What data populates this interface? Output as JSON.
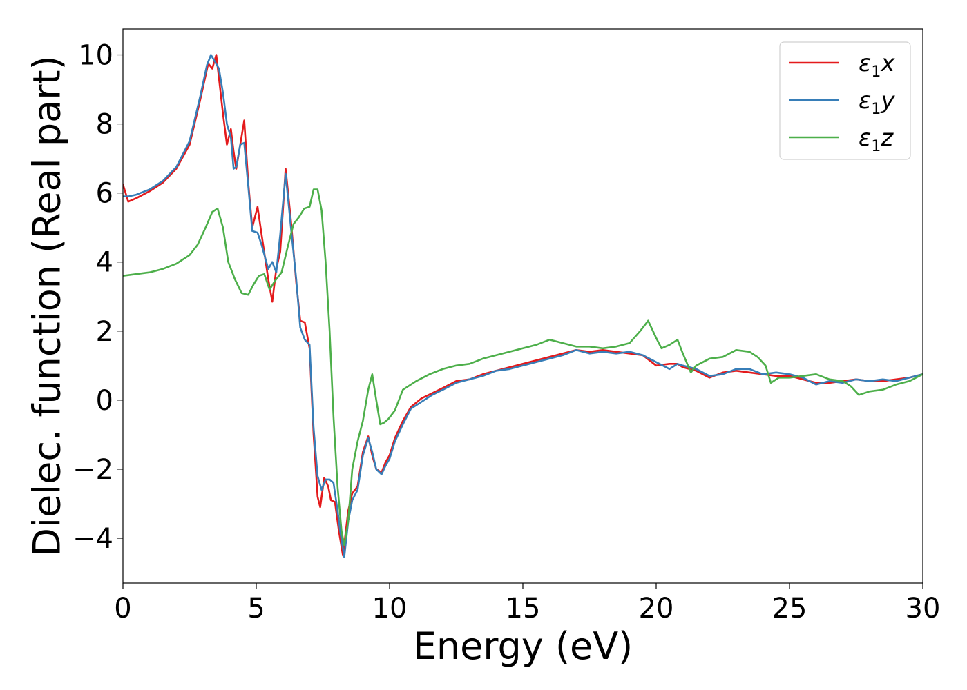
{
  "chart_data": {
    "type": "line",
    "xlabel": "Energy (eV)",
    "ylabel": "Dielec. function (Real part)",
    "xlim": [
      0,
      30
    ],
    "ylim": [
      -5.3,
      10.75
    ],
    "xticks": [
      0,
      5,
      10,
      15,
      20,
      25,
      30
    ],
    "xtick_labels": [
      "0",
      "5",
      "10",
      "15",
      "20",
      "25",
      "30"
    ],
    "yticks": [
      -4,
      -2,
      0,
      2,
      4,
      6,
      8,
      10
    ],
    "ytick_labels": [
      "−4",
      "−2",
      "0",
      "2",
      "4",
      "6",
      "8",
      "10"
    ],
    "grid": false,
    "legend_position": "top-right",
    "series": [
      {
        "name": "ε1x",
        "legend_main": "ε",
        "legend_sub": "1",
        "legend_tail": "x",
        "color": "#e41a1c",
        "x": [
          0,
          0.2,
          0.5,
          1,
          1.5,
          2,
          2.5,
          2.9,
          3.2,
          3.35,
          3.5,
          3.62,
          3.75,
          3.9,
          4.05,
          4.15,
          4.25,
          4.4,
          4.55,
          4.7,
          4.85,
          5.05,
          5.2,
          5.45,
          5.6,
          5.75,
          5.9,
          6.1,
          6.3,
          6.5,
          6.65,
          6.82,
          7.0,
          7.15,
          7.3,
          7.4,
          7.55,
          7.7,
          7.8,
          7.95,
          8.1,
          8.25,
          8.45,
          8.6,
          8.8,
          9.0,
          9.2,
          9.35,
          9.5,
          9.7,
          9.85,
          10.0,
          10.2,
          10.5,
          10.8,
          11.2,
          11.6,
          12.0,
          12.5,
          13.0,
          13.5,
          14.0,
          14.5,
          15.0,
          15.5,
          16.0,
          16.5,
          17.0,
          17.5,
          18.0,
          18.5,
          19.0,
          19.5,
          20.0,
          20.5,
          20.8,
          21.0,
          21.5,
          22.0,
          22.5,
          23.0,
          23.5,
          24.0,
          24.5,
          25.0,
          25.5,
          26.0,
          26.5,
          27.0,
          27.5,
          28.0,
          28.5,
          29.0,
          29.5,
          30.0
        ],
        "y": [
          6.25,
          5.75,
          5.85,
          6.05,
          6.3,
          6.7,
          7.4,
          8.7,
          9.75,
          9.6,
          10.0,
          9.2,
          8.3,
          7.4,
          7.85,
          7.2,
          6.7,
          7.4,
          8.1,
          6.3,
          5.0,
          5.6,
          4.8,
          3.5,
          2.85,
          3.8,
          4.3,
          6.7,
          5.2,
          3.4,
          2.3,
          2.25,
          1.5,
          -1.0,
          -2.8,
          -3.1,
          -2.25,
          -2.5,
          -2.9,
          -2.95,
          -3.8,
          -4.5,
          -3.2,
          -2.7,
          -2.5,
          -1.5,
          -1.05,
          -1.6,
          -2.0,
          -2.1,
          -1.8,
          -1.6,
          -1.1,
          -0.6,
          -0.2,
          0.05,
          0.2,
          0.35,
          0.55,
          0.6,
          0.75,
          0.85,
          0.95,
          1.05,
          1.15,
          1.25,
          1.35,
          1.45,
          1.4,
          1.45,
          1.4,
          1.35,
          1.3,
          1.0,
          1.05,
          1.05,
          0.95,
          0.85,
          0.65,
          0.8,
          0.85,
          0.8,
          0.75,
          0.7,
          0.7,
          0.6,
          0.5,
          0.5,
          0.55,
          0.6,
          0.55,
          0.55,
          0.6,
          0.65,
          0.75
        ]
      },
      {
        "name": "ε1y",
        "legend_main": "ε",
        "legend_sub": "1",
        "legend_tail": "y",
        "color": "#377eb8",
        "x": [
          0,
          0.2,
          0.5,
          1,
          1.5,
          2,
          2.5,
          2.9,
          3.15,
          3.3,
          3.45,
          3.6,
          3.75,
          3.9,
          4.05,
          4.15,
          4.25,
          4.4,
          4.55,
          4.7,
          4.85,
          5.05,
          5.2,
          5.45,
          5.6,
          5.75,
          5.9,
          6.1,
          6.3,
          6.5,
          6.65,
          6.82,
          7.0,
          7.15,
          7.3,
          7.45,
          7.6,
          7.75,
          7.9,
          8.05,
          8.15,
          8.3,
          8.45,
          8.6,
          8.8,
          9.0,
          9.2,
          9.35,
          9.5,
          9.7,
          9.85,
          10.0,
          10.2,
          10.5,
          10.8,
          11.2,
          11.6,
          12.0,
          12.5,
          13.0,
          13.5,
          14.0,
          14.5,
          15.0,
          15.5,
          16.0,
          16.5,
          17.0,
          17.5,
          18.0,
          18.5,
          19.0,
          19.5,
          20.0,
          20.5,
          20.8,
          21.0,
          21.5,
          22.0,
          22.5,
          23.0,
          23.5,
          24.0,
          24.5,
          25.0,
          25.5,
          26.0,
          26.5,
          27.0,
          27.5,
          28.0,
          28.5,
          29.0,
          29.5,
          30.0
        ],
        "y": [
          5.9,
          5.9,
          5.95,
          6.1,
          6.35,
          6.75,
          7.5,
          8.8,
          9.7,
          10.0,
          9.8,
          9.6,
          8.9,
          8.0,
          7.6,
          6.7,
          6.75,
          7.4,
          7.45,
          6.2,
          4.9,
          4.85,
          4.5,
          3.8,
          4.0,
          3.7,
          4.8,
          6.55,
          5.0,
          3.5,
          2.1,
          1.75,
          1.6,
          -0.8,
          -2.2,
          -2.6,
          -2.3,
          -2.3,
          -2.4,
          -3.2,
          -3.8,
          -4.55,
          -3.5,
          -2.9,
          -2.6,
          -1.6,
          -1.1,
          -1.5,
          -2.0,
          -2.15,
          -1.9,
          -1.7,
          -1.2,
          -0.7,
          -0.25,
          -0.05,
          0.15,
          0.3,
          0.5,
          0.6,
          0.7,
          0.85,
          0.9,
          1.0,
          1.1,
          1.2,
          1.3,
          1.45,
          1.35,
          1.4,
          1.35,
          1.4,
          1.3,
          1.1,
          0.9,
          1.05,
          1.0,
          0.9,
          0.7,
          0.75,
          0.9,
          0.9,
          0.75,
          0.8,
          0.75,
          0.65,
          0.45,
          0.55,
          0.5,
          0.6,
          0.55,
          0.6,
          0.55,
          0.65,
          0.75
        ]
      },
      {
        "name": "ε1z",
        "legend_main": "ε",
        "legend_sub": "1",
        "legend_tail": "z",
        "color": "#4daf4a",
        "x": [
          0,
          0.5,
          1,
          1.5,
          2,
          2.5,
          2.8,
          3.1,
          3.35,
          3.55,
          3.75,
          3.95,
          4.2,
          4.45,
          4.7,
          4.9,
          5.1,
          5.3,
          5.5,
          5.7,
          5.95,
          6.2,
          6.4,
          6.6,
          6.8,
          7.0,
          7.15,
          7.3,
          7.45,
          7.6,
          7.75,
          7.9,
          8.05,
          8.2,
          8.3,
          8.45,
          8.6,
          8.8,
          9.0,
          9.2,
          9.35,
          9.5,
          9.65,
          9.8,
          9.95,
          10.2,
          10.5,
          11.0,
          11.5,
          12.0,
          12.5,
          13.0,
          13.5,
          14.0,
          14.5,
          15.0,
          15.5,
          16.0,
          16.5,
          17.0,
          17.5,
          18.0,
          18.5,
          19.0,
          19.4,
          19.7,
          20.0,
          20.2,
          20.5,
          20.8,
          21.0,
          21.3,
          21.5,
          22.0,
          22.5,
          23.0,
          23.5,
          23.8,
          24.1,
          24.3,
          24.6,
          25.0,
          25.5,
          26.0,
          26.5,
          27.0,
          27.3,
          27.6,
          28.0,
          28.5,
          29.0,
          29.5,
          30.0
        ],
        "y": [
          3.6,
          3.65,
          3.7,
          3.8,
          3.95,
          4.2,
          4.5,
          5.0,
          5.45,
          5.55,
          5.0,
          4.0,
          3.5,
          3.1,
          3.05,
          3.35,
          3.6,
          3.65,
          3.2,
          3.45,
          3.7,
          4.5,
          5.1,
          5.3,
          5.55,
          5.6,
          6.1,
          6.1,
          5.5,
          4.0,
          2.0,
          -0.5,
          -2.5,
          -3.8,
          -4.2,
          -3.5,
          -2.0,
          -1.2,
          -0.6,
          0.3,
          0.75,
          0.0,
          -0.7,
          -0.65,
          -0.55,
          -0.3,
          0.3,
          0.55,
          0.75,
          0.9,
          1.0,
          1.05,
          1.2,
          1.3,
          1.4,
          1.5,
          1.6,
          1.75,
          1.65,
          1.55,
          1.55,
          1.5,
          1.55,
          1.65,
          2.0,
          2.3,
          1.8,
          1.5,
          1.6,
          1.75,
          1.35,
          0.8,
          1.0,
          1.2,
          1.25,
          1.45,
          1.4,
          1.25,
          1.0,
          0.5,
          0.65,
          0.65,
          0.7,
          0.75,
          0.6,
          0.55,
          0.4,
          0.15,
          0.25,
          0.3,
          0.45,
          0.55,
          0.75
        ]
      }
    ]
  }
}
